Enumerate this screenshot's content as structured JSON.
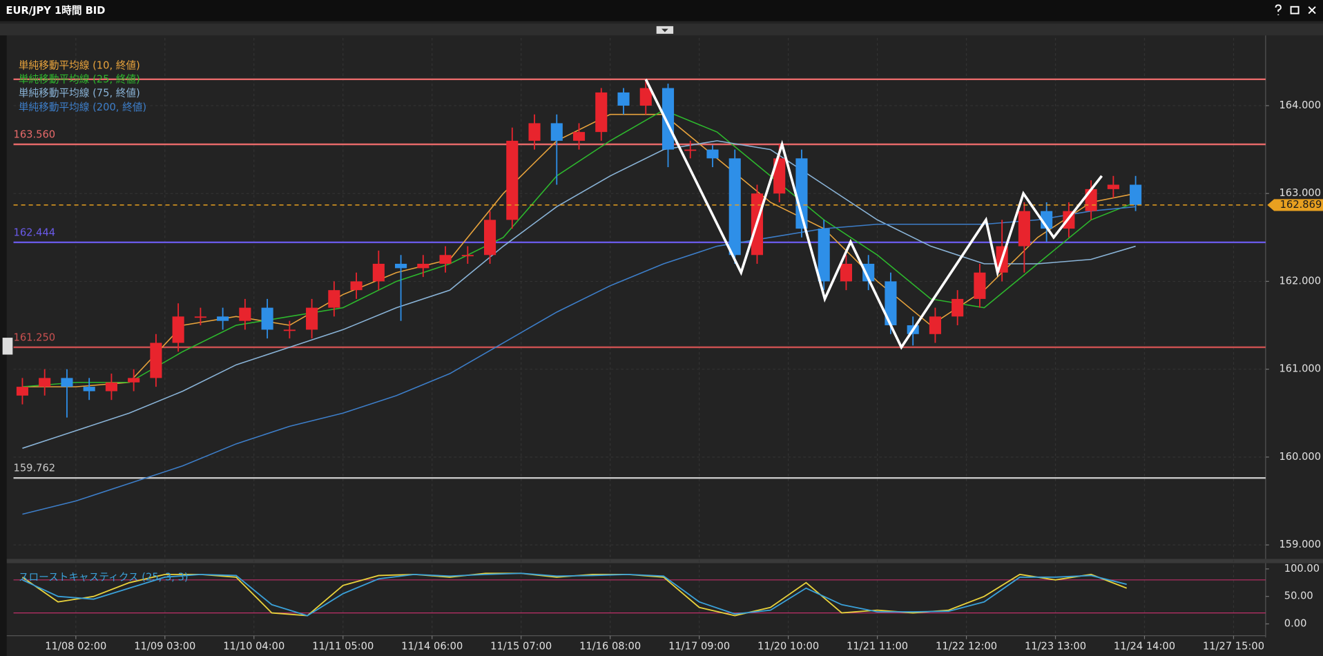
{
  "window_title": "EUR/JPY 1時間 BID",
  "chart_data": [
    {
      "type": "candlestick",
      "x": [
        -0.6,
        -0.35,
        -0.1,
        0.15,
        0.4,
        0.65,
        0.9,
        1.15,
        1.4,
        1.65,
        1.9,
        2.15,
        2.4,
        2.65,
        2.9,
        3.15,
        3.4,
        3.65,
        3.9,
        4.15,
        4.4,
        4.65,
        4.9,
        5.15,
        5.4,
        5.65,
        5.9,
        6.15,
        6.4,
        6.65,
        6.9,
        7.15,
        7.4,
        7.65,
        7.9,
        8.15,
        8.4,
        8.65,
        8.9,
        9.15,
        9.4,
        9.65,
        9.9,
        10.15,
        10.4,
        10.65,
        10.9,
        11.15,
        11.4,
        11.65,
        11.9
      ],
      "open": [
        160.7,
        160.8,
        160.9,
        160.8,
        160.75,
        160.85,
        160.9,
        161.3,
        161.6,
        161.6,
        161.55,
        161.7,
        161.45,
        161.45,
        161.7,
        161.9,
        162.0,
        162.2,
        162.15,
        162.2,
        162.3,
        162.3,
        162.7,
        163.6,
        163.8,
        163.6,
        163.7,
        164.15,
        164.0,
        164.2,
        163.5,
        163.5,
        163.4,
        162.3,
        163.0,
        163.4,
        162.6,
        162.0,
        162.2,
        162.0,
        161.5,
        161.4,
        161.6,
        161.8,
        162.1,
        162.4,
        162.8,
        162.6,
        162.8,
        163.05,
        163.1
      ],
      "high": [
        160.9,
        161.0,
        161.0,
        160.9,
        160.95,
        161.0,
        161.4,
        161.75,
        161.7,
        161.7,
        161.8,
        161.8,
        161.55,
        161.8,
        162.0,
        162.1,
        162.35,
        162.3,
        162.3,
        162.4,
        162.4,
        162.8,
        163.75,
        163.9,
        163.9,
        163.8,
        164.2,
        164.2,
        164.3,
        164.25,
        163.6,
        163.55,
        163.5,
        163.1,
        163.56,
        163.5,
        162.7,
        162.3,
        162.3,
        162.1,
        161.6,
        161.7,
        161.9,
        162.2,
        162.7,
        162.9,
        162.9,
        162.9,
        163.15,
        163.2,
        163.2
      ],
      "low": [
        160.6,
        160.7,
        160.45,
        160.65,
        160.65,
        160.75,
        160.8,
        161.2,
        161.5,
        161.45,
        161.45,
        161.35,
        161.35,
        161.35,
        161.6,
        161.8,
        161.9,
        161.55,
        162.05,
        162.1,
        162.2,
        162.2,
        162.6,
        163.5,
        163.1,
        163.5,
        163.6,
        163.9,
        163.9,
        163.3,
        163.4,
        163.3,
        162.2,
        162.2,
        162.9,
        162.5,
        161.9,
        161.9,
        161.9,
        161.4,
        161.27,
        161.3,
        161.5,
        161.7,
        162.0,
        162.1,
        162.45,
        162.5,
        162.7,
        162.95,
        162.8
      ],
      "close": [
        160.8,
        160.9,
        160.8,
        160.75,
        160.85,
        160.9,
        161.3,
        161.6,
        161.6,
        161.55,
        161.7,
        161.45,
        161.45,
        161.7,
        161.9,
        162.0,
        162.2,
        162.15,
        162.2,
        162.3,
        162.3,
        162.7,
        163.6,
        163.8,
        163.6,
        163.7,
        164.15,
        164.0,
        164.2,
        163.5,
        163.5,
        163.4,
        162.3,
        163.0,
        163.4,
        162.6,
        162.0,
        162.2,
        162.0,
        161.5,
        161.4,
        161.6,
        161.8,
        162.1,
        162.4,
        162.8,
        162.6,
        162.8,
        163.05,
        163.1,
        162.87
      ],
      "up_color": "#e8242d",
      "down_color": "#2e8fe8",
      "overlays": [
        {
          "name": "単純移動平均線 (10, 終値)",
          "color": "#e8a33c",
          "x": [
            -0.6,
            0,
            0.6,
            1.2,
            1.8,
            2.4,
            3,
            3.6,
            4.2,
            4.8,
            5.4,
            6,
            6.6,
            7.2,
            7.8,
            8.4,
            9,
            9.6,
            10.2,
            10.8,
            11.4,
            11.9
          ],
          "values": [
            160.8,
            160.8,
            160.85,
            161.5,
            161.6,
            161.5,
            161.85,
            162.1,
            162.25,
            163.0,
            163.6,
            163.9,
            163.9,
            163.4,
            162.9,
            162.6,
            162.0,
            161.5,
            161.9,
            162.5,
            162.9,
            163.0
          ]
        },
        {
          "name": "単純移動平均線 (25, 終値)",
          "color": "#2db82d",
          "x": [
            -0.6,
            0,
            0.6,
            1.2,
            1.8,
            2.4,
            3,
            3.6,
            4.2,
            4.8,
            5.4,
            6,
            6.6,
            7.2,
            7.8,
            8.4,
            9,
            9.6,
            10.2,
            10.8,
            11.4,
            11.9
          ],
          "values": [
            160.8,
            160.85,
            160.85,
            161.2,
            161.5,
            161.6,
            161.7,
            162.0,
            162.2,
            162.5,
            163.2,
            163.6,
            163.95,
            163.7,
            163.2,
            162.7,
            162.3,
            161.8,
            161.7,
            162.2,
            162.7,
            162.9
          ]
        },
        {
          "name": "単純移動平均線 (75, 終値)",
          "color": "#8ab4d8",
          "x": [
            -0.6,
            0,
            0.6,
            1.2,
            1.8,
            2.4,
            3,
            3.6,
            4.2,
            4.8,
            5.4,
            6,
            6.6,
            7.2,
            7.8,
            8.4,
            9,
            9.6,
            10.2,
            10.8,
            11.4,
            11.9
          ],
          "values": [
            160.1,
            160.3,
            160.5,
            160.75,
            161.05,
            161.25,
            161.45,
            161.7,
            161.9,
            162.4,
            162.85,
            163.2,
            163.5,
            163.6,
            163.5,
            163.1,
            162.7,
            162.4,
            162.2,
            162.2,
            162.25,
            162.4
          ]
        },
        {
          "name": "単純移動平均線 (200, 終値)",
          "color": "#3d7ec9",
          "x": [
            -0.6,
            0,
            0.6,
            1.2,
            1.8,
            2.4,
            3,
            3.6,
            4.2,
            4.8,
            5.4,
            6,
            6.6,
            7.2,
            7.8,
            8.4,
            9,
            9.6,
            10.2,
            10.8,
            11.4,
            11.9
          ],
          "values": [
            159.35,
            159.5,
            159.7,
            159.9,
            160.15,
            160.35,
            160.5,
            160.7,
            160.95,
            161.3,
            161.65,
            161.95,
            162.2,
            162.4,
            162.5,
            162.6,
            162.65,
            162.65,
            162.65,
            162.7,
            162.8,
            162.85
          ]
        }
      ],
      "levels": [
        {
          "value": 164.3,
          "color": "#e86a6a"
        },
        {
          "value": 163.56,
          "label": "163.560",
          "color": "#e86a6a"
        },
        {
          "value": 162.444,
          "label": "162.444",
          "color": "#6a5ae8"
        },
        {
          "value": 161.25,
          "label": "161.250",
          "color": "#c95050"
        },
        {
          "value": 159.762,
          "label": "159.762",
          "color": "#c8c8c8"
        }
      ],
      "current": {
        "value": 162.869,
        "color": "#e8a020"
      },
      "annotation_line": {
        "color": "#ffffff",
        "x": [
          6.4,
          7.47,
          7.93,
          8.41,
          8.7,
          9.27,
          10.22,
          10.35,
          10.64,
          10.98,
          11.52
        ],
        "y": [
          164.3,
          162.1,
          163.56,
          161.8,
          162.45,
          161.25,
          162.7,
          162.1,
          163.0,
          162.5,
          163.2
        ]
      },
      "xlim": [
        -0.7,
        13.36
      ],
      "xticks": [
        {
          "value": 0,
          "label": "11/08 02:00"
        },
        {
          "value": 1,
          "label": "11/09 03:00"
        },
        {
          "value": 2,
          "label": "11/10 04:00"
        },
        {
          "value": 3,
          "label": "11/11 05:00"
        },
        {
          "value": 4,
          "label": "11/14 06:00"
        },
        {
          "value": 5,
          "label": "11/15 07:00"
        },
        {
          "value": 6,
          "label": "11/16 08:00"
        },
        {
          "value": 7,
          "label": "11/17 09:00"
        },
        {
          "value": 8,
          "label": "11/20 10:00"
        },
        {
          "value": 9,
          "label": "11/21 11:00"
        },
        {
          "value": 10,
          "label": "11/22 12:00"
        },
        {
          "value": 11,
          "label": "11/23 13:00"
        },
        {
          "value": 12,
          "label": "11/24 14:00"
        },
        {
          "value": 13,
          "label": "11/27 15:00"
        }
      ],
      "ylim": [
        158.86,
        164.77
      ],
      "yticks": [
        {
          "value": 159,
          "label": "159.000"
        },
        {
          "value": 160,
          "label": "160.000"
        },
        {
          "value": 161,
          "label": "161.000"
        },
        {
          "value": 162,
          "label": "162.000"
        },
        {
          "value": 163,
          "label": "163.000"
        },
        {
          "value": 164,
          "label": "164.000"
        }
      ],
      "grid": true
    },
    {
      "type": "line",
      "title": "スローストキャスティクス (25, 3, 3)",
      "series": [
        {
          "color": "#e8d23c",
          "x": [
            -0.6,
            -0.2,
            0.2,
            0.6,
            1.0,
            1.4,
            1.8,
            2.2,
            2.6,
            3.0,
            3.4,
            3.8,
            4.2,
            4.6,
            5.0,
            5.4,
            5.8,
            6.2,
            6.6,
            7.0,
            7.4,
            7.8,
            8.2,
            8.6,
            9.0,
            9.4,
            9.8,
            10.2,
            10.6,
            11.0,
            11.4,
            11.8
          ],
          "values": [
            85,
            40,
            50,
            75,
            90,
            90,
            85,
            20,
            15,
            70,
            88,
            90,
            85,
            92,
            92,
            85,
            90,
            90,
            85,
            30,
            15,
            30,
            75,
            20,
            25,
            20,
            25,
            50,
            90,
            80,
            90,
            65
          ]
        },
        {
          "color": "#3aa0d8",
          "x": [
            -0.6,
            -0.2,
            0.2,
            0.6,
            1.0,
            1.4,
            1.8,
            2.2,
            2.6,
            3.0,
            3.4,
            3.8,
            4.2,
            4.6,
            5.0,
            5.4,
            5.8,
            6.2,
            6.6,
            7.0,
            7.4,
            7.8,
            8.2,
            8.6,
            9.0,
            9.4,
            9.8,
            10.2,
            10.6,
            11.0,
            11.4,
            11.8
          ],
          "values": [
            80,
            50,
            45,
            65,
            85,
            90,
            88,
            35,
            15,
            55,
            82,
            90,
            87,
            90,
            92,
            87,
            88,
            90,
            87,
            40,
            18,
            25,
            65,
            35,
            22,
            22,
            23,
            40,
            85,
            85,
            88,
            72
          ]
        }
      ],
      "levels": [
        {
          "value": 80,
          "color": "#c0306a"
        },
        {
          "value": 20,
          "color": "#c0306a"
        }
      ],
      "xlim": [
        -0.7,
        13.36
      ],
      "ylim": [
        -20,
        109
      ],
      "yticks": [
        {
          "value": 0,
          "label": "0.00"
        },
        {
          "value": 50,
          "label": "50.00"
        },
        {
          "value": 100,
          "label": "100.00"
        }
      ]
    }
  ]
}
